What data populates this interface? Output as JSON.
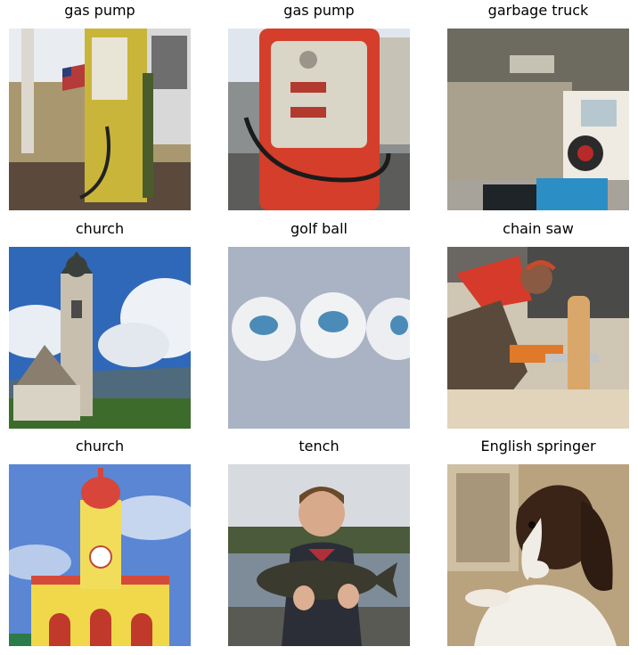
{
  "grid": {
    "items": [
      {
        "label": "gas pump"
      },
      {
        "label": "gas pump"
      },
      {
        "label": "garbage truck"
      },
      {
        "label": "church"
      },
      {
        "label": "golf ball"
      },
      {
        "label": "chain saw"
      },
      {
        "label": "church"
      },
      {
        "label": "tench"
      },
      {
        "label": "English springer"
      }
    ]
  }
}
